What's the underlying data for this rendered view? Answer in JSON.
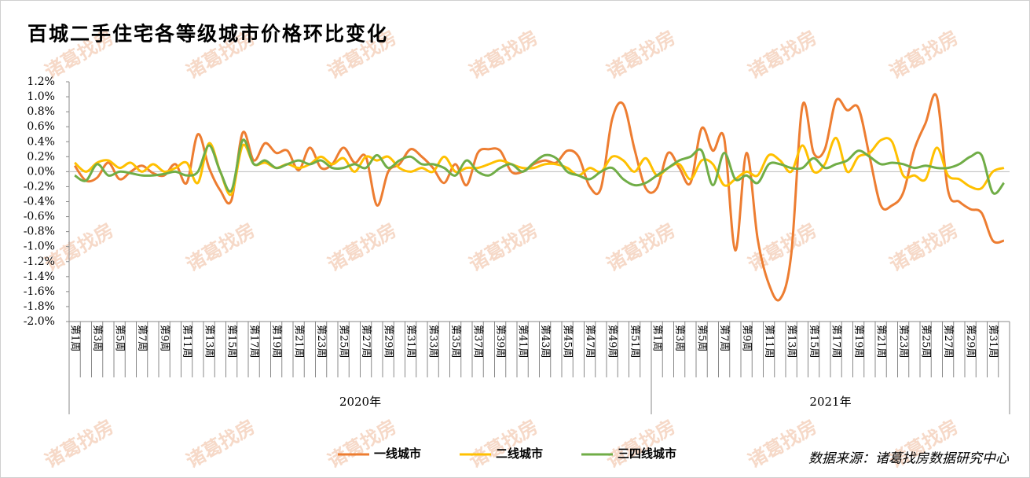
{
  "chart_data": {
    "type": "line",
    "title": "百城二手住宅各等级城市价格环比变化",
    "watermark": "诸葛找房",
    "source": "数据来源：诸葛找房数据研究中心",
    "categories": [
      "第1周",
      null,
      "第3周",
      null,
      "第5周",
      null,
      "第7周",
      null,
      "第9周",
      null,
      "第11周",
      null,
      "第13周",
      null,
      "第15周",
      null,
      "第17周",
      null,
      "第19周",
      null,
      "第21周",
      null,
      "第23周",
      null,
      "第25周",
      null,
      "第27周",
      null,
      "第29周",
      null,
      "第31周",
      null,
      "第33周",
      null,
      "第35周",
      null,
      "第37周",
      null,
      "第39周",
      null,
      "第41周",
      null,
      "第43周",
      null,
      "第45周",
      null,
      "第47周",
      null,
      "第49周",
      null,
      "第51周",
      null,
      "第1周",
      null,
      "第3周",
      null,
      "第5周",
      null,
      "第7周",
      null,
      "第9周",
      null,
      "第11周",
      null,
      "第13周",
      null,
      "第15周",
      null,
      "第17周",
      null,
      "第19周",
      null,
      "第21周",
      null,
      "第23周",
      null,
      "第25周",
      null,
      "第27周",
      null,
      "第29周",
      null,
      "第31周",
      null
    ],
    "x_groups": [
      {
        "label": "2020年",
        "count": 52
      },
      {
        "label": "2021年",
        "count": 32
      }
    ],
    "series": [
      {
        "name": "一线城市",
        "color": "#ED7D31",
        "values": [
          0.08,
          -0.12,
          -0.08,
          0.12,
          -0.1,
          0.0,
          0.08,
          -0.02,
          -0.05,
          0.1,
          -0.15,
          0.5,
          0.05,
          -0.25,
          -0.38,
          0.52,
          0.15,
          0.38,
          0.25,
          0.28,
          0.02,
          0.32,
          0.05,
          0.1,
          0.32,
          0.12,
          0.2,
          -0.45,
          0.0,
          0.1,
          0.3,
          0.2,
          0.05,
          -0.15,
          0.1,
          -0.18,
          0.25,
          0.3,
          0.28,
          0.0,
          0.0,
          0.1,
          0.15,
          0.12,
          0.28,
          0.2,
          -0.2,
          -0.22,
          0.7,
          0.9,
          0.3,
          -0.22,
          -0.22,
          0.25,
          0.05,
          -0.15,
          0.58,
          0.28,
          0.45,
          -1.05,
          0.25,
          -0.9,
          -1.5,
          -1.7,
          -1.1,
          0.88,
          0.25,
          0.3,
          0.95,
          0.82,
          0.85,
          0.2,
          -0.45,
          -0.45,
          -0.28,
          0.3,
          0.65,
          1.0,
          -0.25,
          -0.4,
          -0.5,
          -0.55,
          -0.92,
          -0.92
        ]
      },
      {
        "name": "二线城市",
        "color": "#FFC000",
        "values": [
          0.12,
          0.0,
          0.12,
          0.15,
          0.05,
          0.12,
          0.0,
          0.1,
          0.0,
          0.05,
          0.12,
          -0.15,
          0.38,
          0.0,
          -0.3,
          0.35,
          0.1,
          0.12,
          0.05,
          0.1,
          0.05,
          0.1,
          0.2,
          0.1,
          0.18,
          0.0,
          0.2,
          0.15,
          0.2,
          0.05,
          0.0,
          0.05,
          0.0,
          0.2,
          0.0,
          0.05,
          0.05,
          0.1,
          0.15,
          0.1,
          0.05,
          0.05,
          0.1,
          0.1,
          0.05,
          -0.05,
          0.05,
          0.0,
          0.2,
          0.15,
          0.0,
          0.18,
          -0.05,
          0.05,
          0.1,
          -0.1,
          0.15,
          0.1,
          -0.18,
          -0.1,
          0.0,
          -0.05,
          0.22,
          0.15,
          0.0,
          0.35,
          0.0,
          0.1,
          0.45,
          0.0,
          0.2,
          0.25,
          0.42,
          0.4,
          -0.05,
          -0.05,
          -0.1,
          0.32,
          -0.05,
          -0.1,
          -0.2,
          -0.22,
          0.0,
          0.05
        ]
      },
      {
        "name": "三四线城市",
        "color": "#70AD47",
        "values": [
          -0.05,
          -0.12,
          0.1,
          -0.05,
          0.0,
          -0.02,
          -0.05,
          -0.05,
          -0.03,
          0.0,
          -0.05,
          0.0,
          0.35,
          0.0,
          -0.25,
          0.42,
          0.1,
          0.15,
          0.05,
          0.1,
          0.15,
          0.1,
          0.15,
          0.05,
          0.05,
          0.1,
          0.05,
          0.22,
          0.05,
          0.15,
          0.2,
          0.1,
          0.1,
          0.05,
          -0.05,
          0.15,
          0.0,
          -0.05,
          0.05,
          0.1,
          0.0,
          0.12,
          0.22,
          0.18,
          0.0,
          -0.05,
          -0.1,
          0.0,
          0.05,
          -0.1,
          -0.18,
          -0.15,
          -0.05,
          0.05,
          0.15,
          0.2,
          0.28,
          -0.18,
          0.25,
          -0.1,
          -0.05,
          -0.15,
          0.1,
          0.1,
          0.05,
          0.05,
          0.18,
          0.05,
          0.1,
          0.15,
          0.28,
          0.2,
          0.1,
          0.12,
          0.1,
          0.05,
          0.08,
          0.05,
          0.05,
          0.1,
          0.2,
          0.22,
          -0.28,
          -0.15
        ]
      }
    ],
    "ylim": [
      -2.0,
      1.2
    ],
    "yticks": [
      {
        "value": -2.0,
        "label": "-2.0%"
      },
      {
        "value": -1.8,
        "label": "-1.8%"
      },
      {
        "value": -1.6,
        "label": "-1.6%"
      },
      {
        "value": -1.4,
        "label": "-1.4%"
      },
      {
        "value": -1.2,
        "label": "-1.2%"
      },
      {
        "value": -1.0,
        "label": "-1.0%"
      },
      {
        "value": -0.8,
        "label": "-0.8%"
      },
      {
        "value": -0.6,
        "label": "-0.6%"
      },
      {
        "value": -0.4,
        "label": "-0.4%"
      },
      {
        "value": -0.2,
        "label": "-0.2%"
      },
      {
        "value": 0.0,
        "label": "0.0%"
      },
      {
        "value": 0.2,
        "label": "0.2%"
      },
      {
        "value": 0.4,
        "label": "0.4%"
      },
      {
        "value": 0.6,
        "label": "0.6%"
      },
      {
        "value": 0.8,
        "label": "0.8%"
      },
      {
        "value": 1.0,
        "label": "1.0%"
      },
      {
        "value": 1.2,
        "label": "1.2%"
      }
    ],
    "legend": "bottom"
  }
}
